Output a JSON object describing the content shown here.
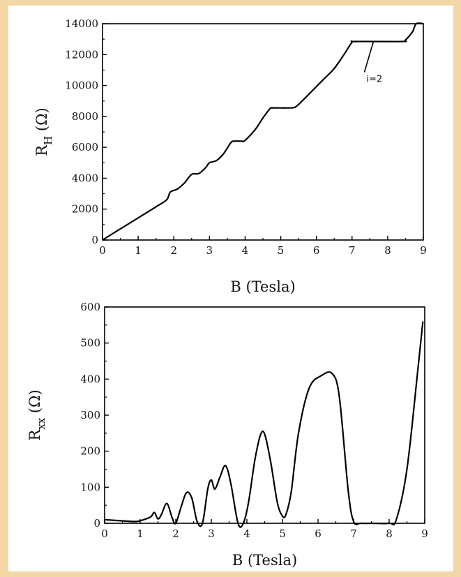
{
  "chart_data": [
    {
      "type": "line",
      "xlabel": "B (Tesla)",
      "ylabel_main": "R",
      "ylabel_sub": "H",
      "ylabel_unit": " (Ω)",
      "xlim": [
        0,
        9
      ],
      "ylim": [
        0,
        14000
      ],
      "xticks": [
        "0",
        "1",
        "2",
        "3",
        "4",
        "5",
        "6",
        "7",
        "8",
        "9"
      ],
      "yticks": [
        "0",
        "2000",
        "4000",
        "6000",
        "8000",
        "10000",
        "12000",
        "14000"
      ],
      "annotation": {
        "text": "i=2",
        "points_to": [
          7.6,
          12850
        ]
      },
      "series": [
        {
          "x": [
            0,
            0.5,
            1.0,
            1.5,
            1.8,
            1.9,
            2.1,
            2.3,
            2.5,
            2.7,
            2.9,
            3.0,
            3.2,
            3.4,
            3.6,
            3.7,
            3.9,
            4.0,
            4.3,
            4.5,
            4.7,
            4.8,
            5.2,
            5.4,
            5.6,
            5.9,
            6.2,
            6.5,
            6.8,
            7.0,
            7.1,
            8.4,
            8.5,
            8.7,
            8.8,
            9.0
          ],
          "y": [
            0,
            720,
            1430,
            2150,
            2600,
            3100,
            3300,
            3700,
            4250,
            4300,
            4700,
            5000,
            5150,
            5600,
            6300,
            6400,
            6400,
            6450,
            7200,
            7900,
            8500,
            8550,
            8550,
            8600,
            9000,
            9700,
            10400,
            11100,
            12100,
            12800,
            12850,
            12850,
            12950,
            13500,
            14000,
            14000
          ]
        }
      ]
    },
    {
      "type": "line",
      "xlabel": "B (Tesla)",
      "ylabel_main": "R",
      "ylabel_sub": "xx",
      "ylabel_unit": " (Ω)",
      "xlim": [
        0,
        9
      ],
      "ylim": [
        0,
        600
      ],
      "xticks": [
        "0",
        "1",
        "2",
        "3",
        "4",
        "5",
        "6",
        "7",
        "8",
        "9"
      ],
      "yticks": [
        "0",
        "100",
        "200",
        "300",
        "400",
        "500",
        "600"
      ],
      "series": [
        {
          "x": [
            0,
            0.3,
            0.6,
            0.9,
            1.1,
            1.3,
            1.4,
            1.5,
            1.6,
            1.75,
            1.9,
            2.0,
            2.15,
            2.3,
            2.45,
            2.6,
            2.75,
            2.9,
            3.0,
            3.1,
            3.25,
            3.4,
            3.55,
            3.75,
            3.9,
            4.05,
            4.25,
            4.45,
            4.65,
            4.85,
            5.0,
            5.1,
            5.25,
            5.45,
            5.75,
            6.1,
            6.4,
            6.6,
            6.85,
            7.0,
            7.2,
            7.5,
            8.0,
            8.2,
            8.5,
            8.8,
            8.95
          ],
          "y": [
            10,
            8,
            6,
            5,
            10,
            18,
            30,
            12,
            25,
            55,
            15,
            0,
            45,
            85,
            70,
            5,
            0,
            95,
            120,
            95,
            130,
            160,
            110,
            0,
            0,
            60,
            190,
            255,
            180,
            60,
            20,
            25,
            90,
            250,
            375,
            410,
            415,
            350,
            90,
            5,
            0,
            0,
            0,
            10,
            150,
            420,
            560
          ]
        }
      ]
    }
  ]
}
